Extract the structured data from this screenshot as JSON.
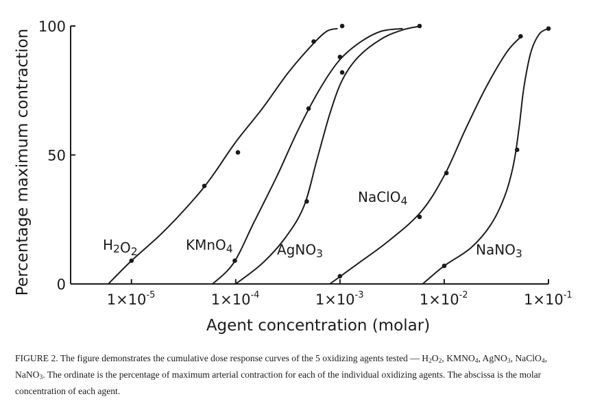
{
  "chart_data": {
    "type": "line",
    "x_scale": "log",
    "xlim": [
      6e-06,
      0.1
    ],
    "ylim": [
      0,
      100
    ],
    "xlabel": "Agent concentration (molar)",
    "ylabel": "Percentage maximum contraction",
    "grid": false,
    "legend": "none (series labelled directly on the plot)",
    "x_ticks": [
      {
        "value": 1e-05,
        "label": "1×10",
        "exp": "-5"
      },
      {
        "value": 0.0001,
        "label": "1×10",
        "exp": "-4"
      },
      {
        "value": 0.001,
        "label": "1×10",
        "exp": "-3"
      },
      {
        "value": 0.01,
        "label": "1×10",
        "exp": "-2"
      },
      {
        "value": 0.1,
        "label": "1×10",
        "exp": "-1"
      }
    ],
    "y_ticks": [
      {
        "value": 0,
        "label": "0"
      },
      {
        "value": 50,
        "label": "50"
      },
      {
        "value": 100,
        "label": "100"
      }
    ],
    "series": [
      {
        "name": "H2O2",
        "label_parts": [
          [
            "H",
            ""
          ],
          [
            "2",
            "sub"
          ],
          [
            "O",
            ""
          ],
          [
            "2",
            "sub"
          ]
        ],
        "points": [
          [
            1e-05,
            9
          ],
          [
            5e-05,
            38
          ],
          [
            0.000105,
            51
          ],
          [
            0.00056,
            94
          ],
          [
            0.00105,
            100
          ]
        ],
        "curve": [
          [
            6e-06,
            0
          ],
          [
            1e-05,
            9
          ],
          [
            2e-05,
            20
          ],
          [
            4e-05,
            33
          ],
          [
            6e-05,
            42
          ],
          [
            0.0001,
            55
          ],
          [
            0.00018,
            68
          ],
          [
            0.00032,
            82
          ],
          [
            0.00055,
            93
          ],
          [
            0.00075,
            98
          ],
          [
            0.00095,
            99
          ]
        ]
      },
      {
        "name": "KMnO4",
        "label_parts": [
          [
            "KMnO",
            ""
          ],
          [
            "4",
            "sub"
          ]
        ],
        "points": [
          [
            9.8e-05,
            9
          ],
          [
            0.0005,
            68
          ],
          [
            0.001,
            88
          ]
        ],
        "curve": [
          [
            6e-05,
            0
          ],
          [
            9.5e-05,
            8
          ],
          [
            0.00015,
            24
          ],
          [
            0.00025,
            42
          ],
          [
            0.0004,
            60
          ],
          [
            0.00065,
            76
          ],
          [
            0.001,
            87
          ],
          [
            0.0016,
            94
          ],
          [
            0.0025,
            98
          ],
          [
            0.004,
            99
          ]
        ]
      },
      {
        "name": "AgNO3",
        "label_parts": [
          [
            "AgNO",
            ""
          ],
          [
            "3",
            "sub"
          ]
        ],
        "points": [
          [
            0.00048,
            32
          ],
          [
            0.00105,
            82
          ],
          [
            0.0058,
            100
          ]
        ],
        "curve": [
          [
            0.0001,
            0
          ],
          [
            0.00018,
            8
          ],
          [
            0.0003,
            18
          ],
          [
            0.00045,
            30
          ],
          [
            0.0006,
            48
          ],
          [
            0.0008,
            66
          ],
          [
            0.00105,
            79
          ],
          [
            0.0015,
            88
          ],
          [
            0.0025,
            95
          ],
          [
            0.004,
            98.5
          ],
          [
            0.006,
            100
          ]
        ]
      },
      {
        "name": "NaClO4",
        "label_parts": [
          [
            "NaClO",
            ""
          ],
          [
            "4",
            "sub"
          ]
        ],
        "points": [
          [
            0.001,
            3
          ],
          [
            0.0058,
            26
          ],
          [
            0.0105,
            43
          ],
          [
            0.054,
            96
          ]
        ],
        "curve": [
          [
            0.0008,
            0
          ],
          [
            0.0015,
            8
          ],
          [
            0.003,
            17
          ],
          [
            0.006,
            28
          ],
          [
            0.01,
            42
          ],
          [
            0.016,
            60
          ],
          [
            0.025,
            76
          ],
          [
            0.04,
            90
          ],
          [
            0.055,
            96
          ]
        ]
      },
      {
        "name": "NaNO3",
        "label_parts": [
          [
            "NaNO",
            ""
          ],
          [
            "3",
            "sub"
          ]
        ],
        "points": [
          [
            0.01,
            7
          ],
          [
            0.05,
            52
          ],
          [
            0.1,
            99
          ]
        ],
        "curve": [
          [
            0.0062,
            0
          ],
          [
            0.01,
            7
          ],
          [
            0.018,
            14
          ],
          [
            0.028,
            23
          ],
          [
            0.038,
            34
          ],
          [
            0.046,
            46
          ],
          [
            0.052,
            60
          ],
          [
            0.058,
            76
          ],
          [
            0.068,
            90
          ],
          [
            0.082,
            97
          ],
          [
            0.1,
            99
          ]
        ]
      }
    ]
  },
  "caption": {
    "parts": [
      [
        "FIGURE 2.   The figure demonstrates the cumulative dose response curves of the 5 oxidizing agents tested — H",
        ""
      ],
      [
        "2",
        "sub"
      ],
      [
        "O",
        ""
      ],
      [
        "2",
        "sub"
      ],
      [
        ", KMNO",
        ""
      ],
      [
        "4",
        "sub"
      ],
      [
        ", AgNO",
        ""
      ],
      [
        "3",
        "sub"
      ],
      [
        ", NaClO",
        ""
      ],
      [
        "4",
        "sub"
      ],
      [
        ", NaNO",
        ""
      ],
      [
        "3",
        "sub"
      ],
      [
        ". The ordinate is the percentage of maximum arterial contraction for each of the individual oxidizing agents. The abscissa is the molar concentration of each agent.",
        ""
      ]
    ]
  }
}
